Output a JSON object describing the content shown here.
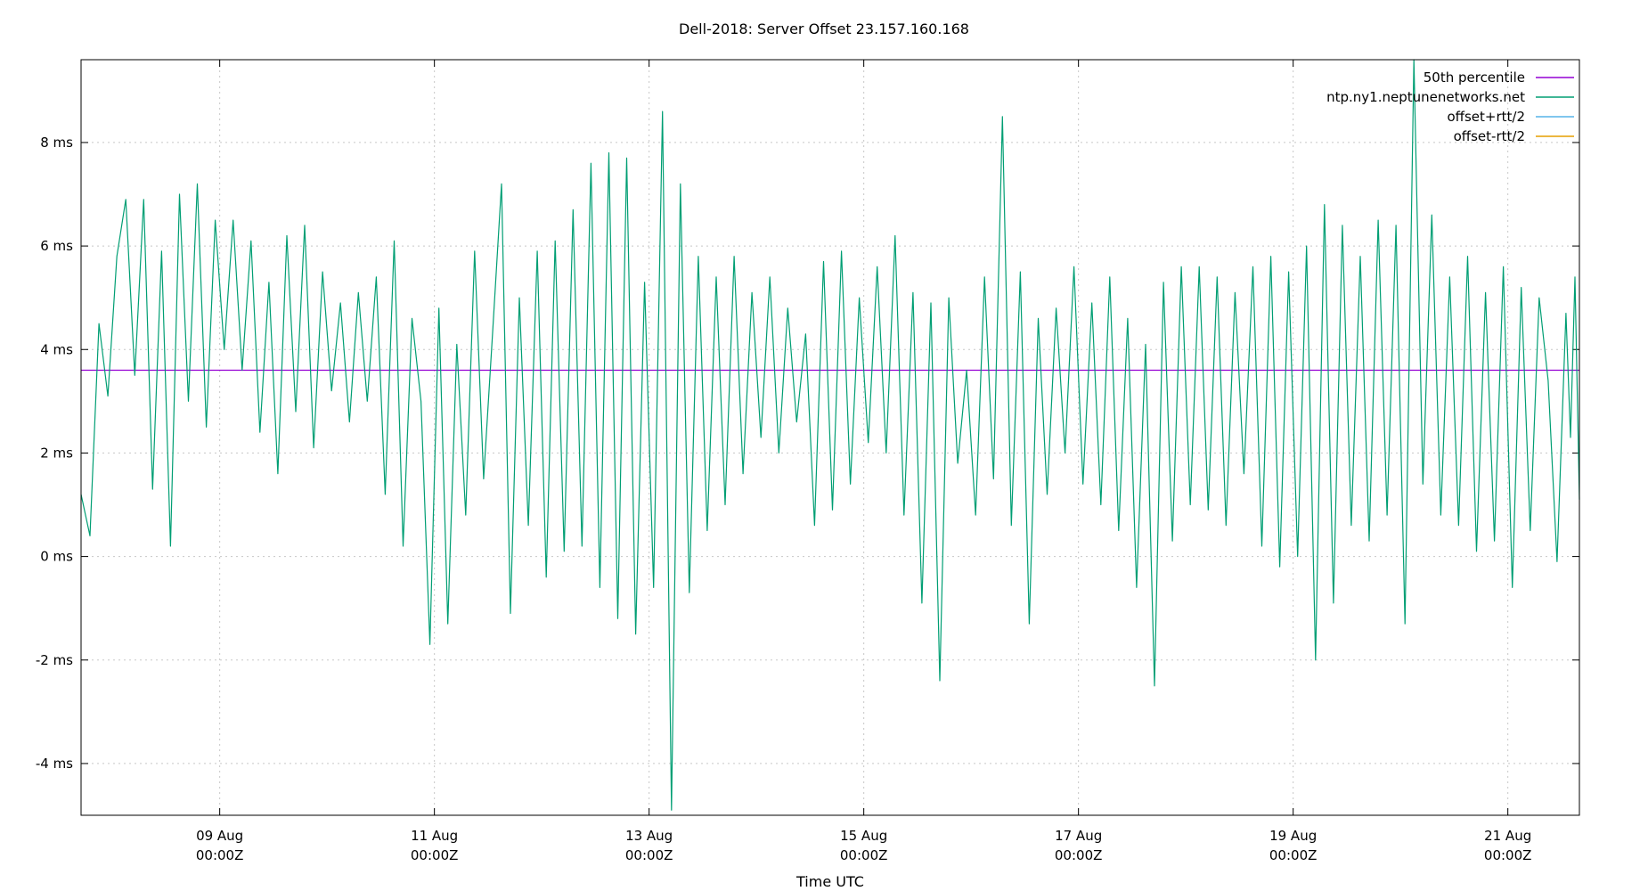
{
  "chart_data": {
    "type": "line",
    "title": "Dell-2018: Server Offset 23.157.160.168",
    "xlabel": "Time UTC",
    "ylabel": "",
    "grid": true,
    "legend_position": "top-right",
    "x_range": [
      "2018-08-07T17:00Z",
      "2018-08-21T16:00Z"
    ],
    "ylim": [
      -5,
      9.6
    ],
    "y_ticks": [
      {
        "value": -4,
        "label": "-4 ms"
      },
      {
        "value": -2,
        "label": "-2 ms"
      },
      {
        "value": 0,
        "label": "0 ms"
      },
      {
        "value": 2,
        "label": "2 ms"
      },
      {
        "value": 4,
        "label": "4 ms"
      },
      {
        "value": 6,
        "label": "6 ms"
      },
      {
        "value": 8,
        "label": "8 ms"
      }
    ],
    "x_ticks": [
      {
        "value": "2018-08-09T00:00Z",
        "line1": "09 Aug",
        "line2": "00:00Z"
      },
      {
        "value": "2018-08-11T00:00Z",
        "line1": "11 Aug",
        "line2": "00:00Z"
      },
      {
        "value": "2018-08-13T00:00Z",
        "line1": "13 Aug",
        "line2": "00:00Z"
      },
      {
        "value": "2018-08-15T00:00Z",
        "line1": "15 Aug",
        "line2": "00:00Z"
      },
      {
        "value": "2018-08-17T00:00Z",
        "line1": "17 Aug",
        "line2": "00:00Z"
      },
      {
        "value": "2018-08-19T00:00Z",
        "line1": "19 Aug",
        "line2": "00:00Z"
      },
      {
        "value": "2018-08-21T00:00Z",
        "line1": "21 Aug",
        "line2": "00:00Z"
      }
    ],
    "legend": [
      {
        "name": "50th percentile",
        "color": "#9400d3"
      },
      {
        "name": "ntp.ny1.neptunenetworks.net",
        "color": "#009e73"
      },
      {
        "name": "offset+rtt/2",
        "color": "#56b4e9"
      },
      {
        "name": "offset-rtt/2",
        "color": "#e69f00"
      }
    ],
    "series": [
      {
        "name": "50th percentile",
        "color": "#9400d3",
        "kind": "hline",
        "value": 3.6
      },
      {
        "name": "ntp.ny1.neptunenetworks.net",
        "color": "#009e73",
        "kind": "line",
        "points": [
          [
            "2018-08-07T17:00Z",
            1.2
          ],
          [
            "2018-08-07T19:00Z",
            0.4
          ],
          [
            "2018-08-07T21:00Z",
            4.5
          ],
          [
            "2018-08-07T23:00Z",
            3.1
          ],
          [
            "2018-08-08T01:00Z",
            5.8
          ],
          [
            "2018-08-08T03:00Z",
            6.9
          ],
          [
            "2018-08-08T05:00Z",
            3.5
          ],
          [
            "2018-08-08T07:00Z",
            6.9
          ],
          [
            "2018-08-08T09:00Z",
            1.3
          ],
          [
            "2018-08-08T11:00Z",
            5.9
          ],
          [
            "2018-08-08T13:00Z",
            0.2
          ],
          [
            "2018-08-08T15:00Z",
            7.0
          ],
          [
            "2018-08-08T17:00Z",
            3.0
          ],
          [
            "2018-08-08T19:00Z",
            7.2
          ],
          [
            "2018-08-08T21:00Z",
            2.5
          ],
          [
            "2018-08-08T23:00Z",
            6.5
          ],
          [
            "2018-08-09T01:00Z",
            4.0
          ],
          [
            "2018-08-09T03:00Z",
            6.5
          ],
          [
            "2018-08-09T05:00Z",
            3.6
          ],
          [
            "2018-08-09T07:00Z",
            6.1
          ],
          [
            "2018-08-09T09:00Z",
            2.4
          ],
          [
            "2018-08-09T11:00Z",
            5.3
          ],
          [
            "2018-08-09T13:00Z",
            1.6
          ],
          [
            "2018-08-09T15:00Z",
            6.2
          ],
          [
            "2018-08-09T17:00Z",
            2.8
          ],
          [
            "2018-08-09T19:00Z",
            6.4
          ],
          [
            "2018-08-09T21:00Z",
            2.1
          ],
          [
            "2018-08-09T23:00Z",
            5.5
          ],
          [
            "2018-08-10T01:00Z",
            3.2
          ],
          [
            "2018-08-10T03:00Z",
            4.9
          ],
          [
            "2018-08-10T05:00Z",
            2.6
          ],
          [
            "2018-08-10T07:00Z",
            5.1
          ],
          [
            "2018-08-10T09:00Z",
            3.0
          ],
          [
            "2018-08-10T11:00Z",
            5.4
          ],
          [
            "2018-08-10T13:00Z",
            1.2
          ],
          [
            "2018-08-10T15:00Z",
            6.1
          ],
          [
            "2018-08-10T17:00Z",
            0.2
          ],
          [
            "2018-08-10T19:00Z",
            4.6
          ],
          [
            "2018-08-10T21:00Z",
            3.0
          ],
          [
            "2018-08-10T23:00Z",
            -1.7
          ],
          [
            "2018-08-11T01:00Z",
            4.8
          ],
          [
            "2018-08-11T03:00Z",
            -1.3
          ],
          [
            "2018-08-11T05:00Z",
            4.1
          ],
          [
            "2018-08-11T07:00Z",
            0.8
          ],
          [
            "2018-08-11T09:00Z",
            5.9
          ],
          [
            "2018-08-11T11:00Z",
            1.5
          ],
          [
            "2018-08-11T13:00Z",
            4.3
          ],
          [
            "2018-08-11T15:00Z",
            7.2
          ],
          [
            "2018-08-11T17:00Z",
            -1.1
          ],
          [
            "2018-08-11T19:00Z",
            5.0
          ],
          [
            "2018-08-11T21:00Z",
            0.6
          ],
          [
            "2018-08-11T23:00Z",
            5.9
          ],
          [
            "2018-08-12T01:00Z",
            -0.4
          ],
          [
            "2018-08-12T03:00Z",
            6.1
          ],
          [
            "2018-08-12T05:00Z",
            0.1
          ],
          [
            "2018-08-12T07:00Z",
            6.7
          ],
          [
            "2018-08-12T09:00Z",
            0.2
          ],
          [
            "2018-08-12T11:00Z",
            7.6
          ],
          [
            "2018-08-12T13:00Z",
            -0.6
          ],
          [
            "2018-08-12T15:00Z",
            7.8
          ],
          [
            "2018-08-12T17:00Z",
            -1.2
          ],
          [
            "2018-08-12T19:00Z",
            7.7
          ],
          [
            "2018-08-12T21:00Z",
            -1.5
          ],
          [
            "2018-08-12T23:00Z",
            5.3
          ],
          [
            "2018-08-13T01:00Z",
            -0.6
          ],
          [
            "2018-08-13T03:00Z",
            8.6
          ],
          [
            "2018-08-13T05:00Z",
            -4.9
          ],
          [
            "2018-08-13T07:00Z",
            7.2
          ],
          [
            "2018-08-13T09:00Z",
            -0.7
          ],
          [
            "2018-08-13T11:00Z",
            5.8
          ],
          [
            "2018-08-13T13:00Z",
            0.5
          ],
          [
            "2018-08-13T15:00Z",
            5.4
          ],
          [
            "2018-08-13T17:00Z",
            1.0
          ],
          [
            "2018-08-13T19:00Z",
            5.8
          ],
          [
            "2018-08-13T21:00Z",
            1.6
          ],
          [
            "2018-08-13T23:00Z",
            5.1
          ],
          [
            "2018-08-14T01:00Z",
            2.3
          ],
          [
            "2018-08-14T03:00Z",
            5.4
          ],
          [
            "2018-08-14T05:00Z",
            2.0
          ],
          [
            "2018-08-14T07:00Z",
            4.8
          ],
          [
            "2018-08-14T09:00Z",
            2.6
          ],
          [
            "2018-08-14T11:00Z",
            4.3
          ],
          [
            "2018-08-14T13:00Z",
            0.6
          ],
          [
            "2018-08-14T15:00Z",
            5.7
          ],
          [
            "2018-08-14T17:00Z",
            0.9
          ],
          [
            "2018-08-14T19:00Z",
            5.9
          ],
          [
            "2018-08-14T21:00Z",
            1.4
          ],
          [
            "2018-08-14T23:00Z",
            5.0
          ],
          [
            "2018-08-15T01:00Z",
            2.2
          ],
          [
            "2018-08-15T03:00Z",
            5.6
          ],
          [
            "2018-08-15T05:00Z",
            2.0
          ],
          [
            "2018-08-15T07:00Z",
            6.2
          ],
          [
            "2018-08-15T09:00Z",
            0.8
          ],
          [
            "2018-08-15T11:00Z",
            5.1
          ],
          [
            "2018-08-15T13:00Z",
            -0.9
          ],
          [
            "2018-08-15T15:00Z",
            4.9
          ],
          [
            "2018-08-15T17:00Z",
            -2.4
          ],
          [
            "2018-08-15T19:00Z",
            5.0
          ],
          [
            "2018-08-15T21:00Z",
            1.8
          ],
          [
            "2018-08-15T23:00Z",
            3.6
          ],
          [
            "2018-08-16T01:00Z",
            0.8
          ],
          [
            "2018-08-16T03:00Z",
            5.4
          ],
          [
            "2018-08-16T05:00Z",
            1.5
          ],
          [
            "2018-08-16T07:00Z",
            8.5
          ],
          [
            "2018-08-16T09:00Z",
            0.6
          ],
          [
            "2018-08-16T11:00Z",
            5.5
          ],
          [
            "2018-08-16T13:00Z",
            -1.3
          ],
          [
            "2018-08-16T15:00Z",
            4.6
          ],
          [
            "2018-08-16T17:00Z",
            1.2
          ],
          [
            "2018-08-16T19:00Z",
            4.8
          ],
          [
            "2018-08-16T21:00Z",
            2.0
          ],
          [
            "2018-08-16T23:00Z",
            5.6
          ],
          [
            "2018-08-17T01:00Z",
            1.4
          ],
          [
            "2018-08-17T03:00Z",
            4.9
          ],
          [
            "2018-08-17T05:00Z",
            1.0
          ],
          [
            "2018-08-17T07:00Z",
            5.4
          ],
          [
            "2018-08-17T09:00Z",
            0.5
          ],
          [
            "2018-08-17T11:00Z",
            4.6
          ],
          [
            "2018-08-17T13:00Z",
            -0.6
          ],
          [
            "2018-08-17T15:00Z",
            4.1
          ],
          [
            "2018-08-17T17:00Z",
            -2.5
          ],
          [
            "2018-08-17T19:00Z",
            5.3
          ],
          [
            "2018-08-17T21:00Z",
            0.3
          ],
          [
            "2018-08-17T23:00Z",
            5.6
          ],
          [
            "2018-08-18T01:00Z",
            1.0
          ],
          [
            "2018-08-18T03:00Z",
            5.6
          ],
          [
            "2018-08-18T05:00Z",
            0.9
          ],
          [
            "2018-08-18T07:00Z",
            5.4
          ],
          [
            "2018-08-18T09:00Z",
            0.6
          ],
          [
            "2018-08-18T11:00Z",
            5.1
          ],
          [
            "2018-08-18T13:00Z",
            1.6
          ],
          [
            "2018-08-18T15:00Z",
            5.6
          ],
          [
            "2018-08-18T17:00Z",
            0.2
          ],
          [
            "2018-08-18T19:00Z",
            5.8
          ],
          [
            "2018-08-18T21:00Z",
            -0.2
          ],
          [
            "2018-08-18T23:00Z",
            5.5
          ],
          [
            "2018-08-19T01:00Z",
            0.0
          ],
          [
            "2018-08-19T03:00Z",
            6.0
          ],
          [
            "2018-08-19T05:00Z",
            -2.0
          ],
          [
            "2018-08-19T07:00Z",
            6.8
          ],
          [
            "2018-08-19T09:00Z",
            -0.9
          ],
          [
            "2018-08-19T11:00Z",
            6.4
          ],
          [
            "2018-08-19T13:00Z",
            0.6
          ],
          [
            "2018-08-19T15:00Z",
            5.8
          ],
          [
            "2018-08-19T17:00Z",
            0.3
          ],
          [
            "2018-08-19T19:00Z",
            6.5
          ],
          [
            "2018-08-19T21:00Z",
            0.8
          ],
          [
            "2018-08-19T23:00Z",
            6.4
          ],
          [
            "2018-08-20T01:00Z",
            -1.3
          ],
          [
            "2018-08-20T03:00Z",
            9.6
          ],
          [
            "2018-08-20T05:00Z",
            1.4
          ],
          [
            "2018-08-20T07:00Z",
            6.6
          ],
          [
            "2018-08-20T09:00Z",
            0.8
          ],
          [
            "2018-08-20T11:00Z",
            5.4
          ],
          [
            "2018-08-20T13:00Z",
            0.6
          ],
          [
            "2018-08-20T15:00Z",
            5.8
          ],
          [
            "2018-08-20T17:00Z",
            0.1
          ],
          [
            "2018-08-20T19:00Z",
            5.1
          ],
          [
            "2018-08-20T21:00Z",
            0.3
          ],
          [
            "2018-08-20T23:00Z",
            5.6
          ],
          [
            "2018-08-21T01:00Z",
            -0.6
          ],
          [
            "2018-08-21T03:00Z",
            5.2
          ],
          [
            "2018-08-21T05:00Z",
            0.5
          ],
          [
            "2018-08-21T07:00Z",
            5.0
          ],
          [
            "2018-08-21T09:00Z",
            3.4
          ],
          [
            "2018-08-21T11:00Z",
            -0.1
          ],
          [
            "2018-08-21T13:00Z",
            4.7
          ],
          [
            "2018-08-21T14:00Z",
            2.3
          ],
          [
            "2018-08-21T15:00Z",
            5.4
          ],
          [
            "2018-08-21T16:00Z",
            1.1
          ]
        ]
      },
      {
        "name": "offset+rtt/2",
        "color": "#56b4e9",
        "kind": "line",
        "points": []
      },
      {
        "name": "offset-rtt/2",
        "color": "#e69f00",
        "kind": "line",
        "points": []
      }
    ]
  }
}
